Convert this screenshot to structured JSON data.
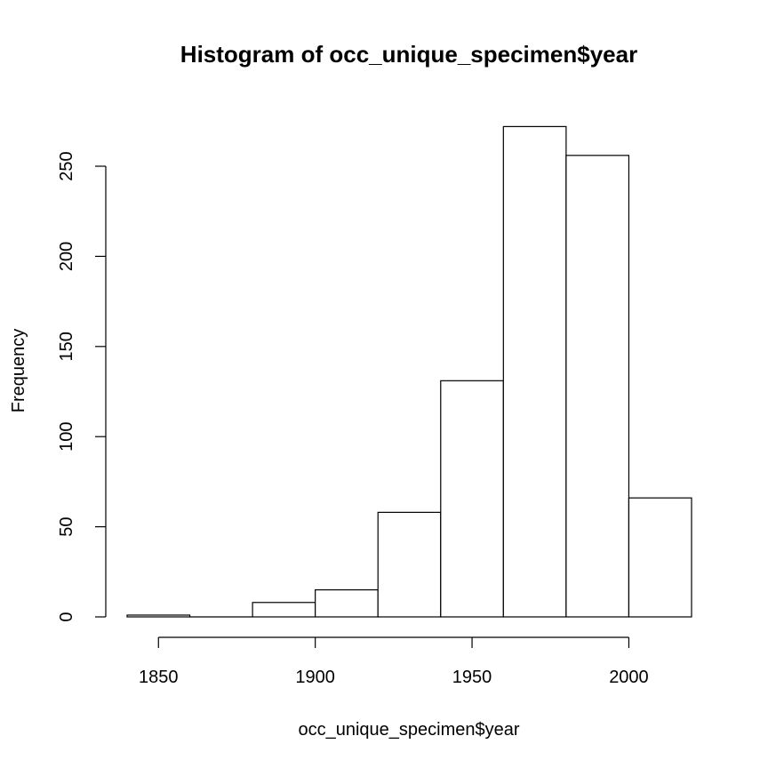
{
  "chart_data": {
    "type": "bar",
    "title": "Histogram of occ_unique_specimen$year",
    "xlabel": "occ_unique_specimen$year",
    "ylabel": "Frequency",
    "bins": [
      {
        "start": 1840,
        "end": 1860,
        "count": 1
      },
      {
        "start": 1860,
        "end": 1880,
        "count": 0
      },
      {
        "start": 1880,
        "end": 1900,
        "count": 8
      },
      {
        "start": 1900,
        "end": 1920,
        "count": 15
      },
      {
        "start": 1920,
        "end": 1940,
        "count": 58
      },
      {
        "start": 1940,
        "end": 1960,
        "count": 131
      },
      {
        "start": 1960,
        "end": 1980,
        "count": 272
      },
      {
        "start": 1980,
        "end": 2000,
        "count": 256
      },
      {
        "start": 2000,
        "end": 2020,
        "count": 66
      }
    ],
    "xlim": [
      1840,
      2020
    ],
    "ylim": [
      0,
      272
    ],
    "x_ticks": [
      1850,
      1900,
      1950,
      2000
    ],
    "y_ticks": [
      0,
      50,
      100,
      150,
      200,
      250
    ],
    "grid": false,
    "colors": {
      "bar_fill": "#ffffff",
      "bar_stroke": "#000000"
    }
  }
}
